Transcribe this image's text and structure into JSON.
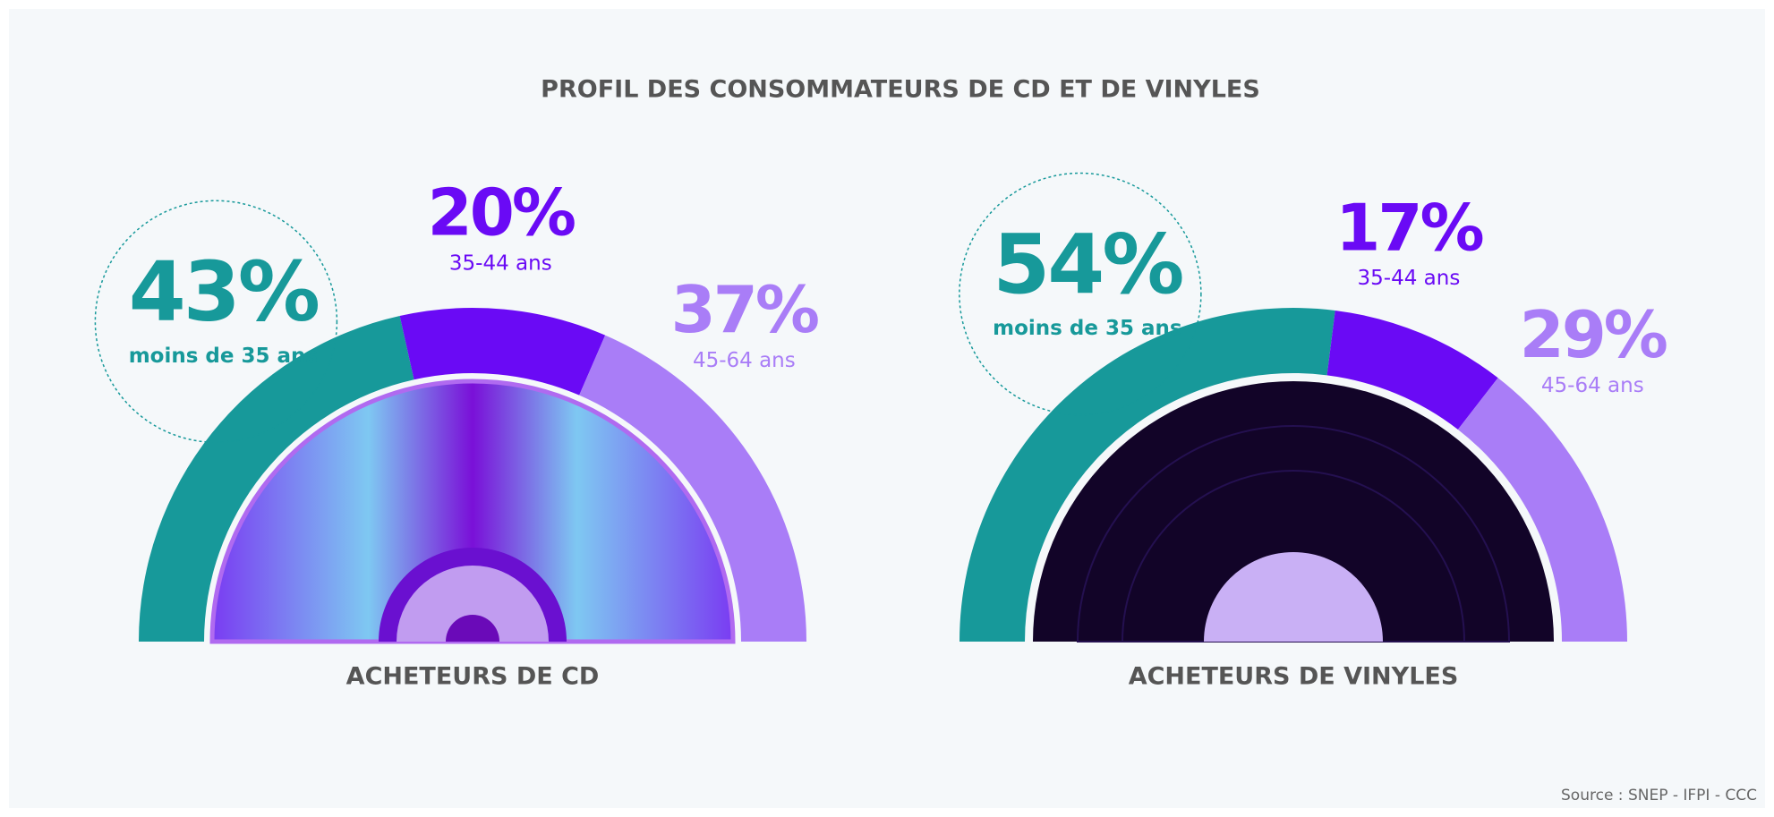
{
  "title": "PROFIL DES CONSOMMATEURS DE CD ET DE VINYLES",
  "source": "Source : SNEP - IFPI - CCC",
  "chart_data": [
    {
      "type": "half-donut",
      "title": "ACHETEURS DE CD",
      "categories": [
        "moins de 35 ans",
        "35-44 ans",
        "45-64 ans"
      ],
      "values": [
        43,
        20,
        37
      ],
      "value_labels": [
        "43%",
        "20%",
        "37%"
      ],
      "colors": [
        "#17999a",
        "#6a0af5",
        "#a97df7"
      ]
    },
    {
      "type": "half-donut",
      "title": "ACHETEURS DE VINYLES",
      "categories": [
        "moins de 35 ans",
        "35-44 ans",
        "45-64 ans"
      ],
      "values": [
        54,
        17,
        29
      ],
      "value_labels": [
        "54%",
        "17%",
        "29%"
      ],
      "colors": [
        "#17999a",
        "#6a0af5",
        "#a97df7"
      ]
    }
  ]
}
